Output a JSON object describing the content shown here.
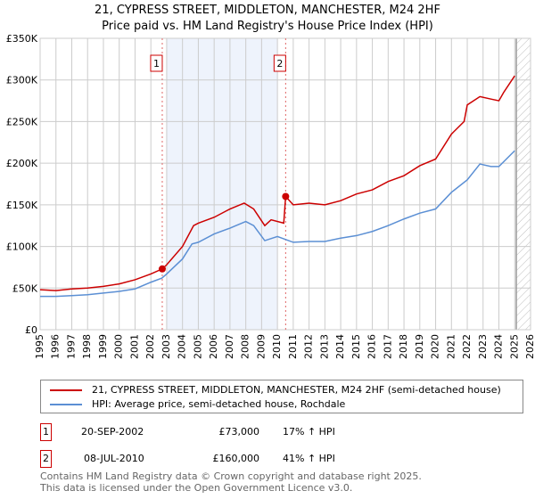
{
  "chart_data": {
    "type": "line",
    "title": "21, CYPRESS STREET, MIDDLETON, MANCHESTER, M24 2HF",
    "subtitle": "Price paid vs. HM Land Registry's House Price Index (HPI)",
    "xlim": [
      1995,
      2026
    ],
    "ylim": [
      0,
      350000
    ],
    "x_ticks": [
      "1995",
      "1996",
      "1997",
      "1998",
      "1999",
      "2000",
      "2001",
      "2002",
      "2003",
      "2004",
      "2005",
      "2006",
      "2007",
      "2008",
      "2009",
      "2010",
      "2011",
      "2012",
      "2013",
      "2014",
      "2015",
      "2016",
      "2017",
      "2018",
      "2019",
      "2020",
      "2021",
      "2022",
      "2023",
      "2024",
      "2025",
      "2026"
    ],
    "y_ticks": [
      {
        "v": 0,
        "l": "£0"
      },
      {
        "v": 50000,
        "l": "£50K"
      },
      {
        "v": 100000,
        "l": "£100K"
      },
      {
        "v": 150000,
        "l": "£150K"
      },
      {
        "v": 200000,
        "l": "£200K"
      },
      {
        "v": 250000,
        "l": "£250K"
      },
      {
        "v": 300000,
        "l": "£300K"
      },
      {
        "v": 350000,
        "l": "£350K"
      }
    ],
    "grid": true,
    "shaded_range": [
      2003.0,
      2010.0
    ],
    "future_hatch_from": 2025.1,
    "series": [
      {
        "name": "21, CYPRESS STREET, MIDDLETON, MANCHESTER, M24 2HF (semi-detached house)",
        "color": "#cc0000",
        "x": [
          1995,
          1996,
          1997,
          1998,
          1999,
          2000,
          2001,
          2002,
          2002.72,
          2003,
          2004,
          2004.7,
          2005,
          2006,
          2007,
          2007.9,
          2008.5,
          2009.2,
          2009.6,
          2010.4,
          2010.52,
          2011,
          2012,
          2013,
          2014,
          2015,
          2016,
          2017,
          2018,
          2019,
          2020,
          2021,
          2021.8,
          2022,
          2022.8,
          2023.5,
          2024,
          2024.3,
          2025
        ],
        "y": [
          48000,
          47000,
          49000,
          50000,
          52000,
          55000,
          60000,
          67000,
          73000,
          78000,
          100000,
          125000,
          128000,
          135000,
          145000,
          152000,
          145000,
          125000,
          132000,
          128000,
          160000,
          150000,
          152000,
          150000,
          155000,
          163000,
          168000,
          178000,
          185000,
          197000,
          205000,
          235000,
          250000,
          270000,
          280000,
          277000,
          275000,
          285000,
          305000
        ]
      },
      {
        "name": "HPI: Average price, semi-detached house, Rochdale",
        "color": "#5b8fd4",
        "x": [
          1995,
          1996,
          1997,
          1998,
          1999,
          2000,
          2001,
          2002,
          2002.7,
          2003,
          2004,
          2004.6,
          2005,
          2006,
          2007,
          2008,
          2008.5,
          2009.2,
          2010,
          2011,
          2012,
          2013,
          2014,
          2015,
          2016,
          2017,
          2018,
          2019,
          2020,
          2021,
          2022,
          2022.8,
          2023.5,
          2024,
          2025
        ],
        "y": [
          40000,
          40000,
          41000,
          42000,
          44000,
          46000,
          49000,
          57000,
          62000,
          67000,
          85000,
          103000,
          105000,
          115000,
          122000,
          130000,
          125000,
          107000,
          112000,
          105000,
          106000,
          106000,
          110000,
          113000,
          118000,
          125000,
          133000,
          140000,
          145000,
          165000,
          180000,
          199000,
          196000,
          196000,
          215000
        ]
      }
    ],
    "sales": [
      {
        "label": "1",
        "x": 2002.72,
        "y": 73000,
        "date": "20-SEP-2002",
        "price": "£73,000",
        "hpi": "17% ↑ HPI"
      },
      {
        "label": "2",
        "x": 2010.52,
        "y": 160000,
        "date": "08-JUL-2010",
        "price": "£160,000",
        "hpi": "41% ↑ HPI"
      }
    ]
  },
  "footer": {
    "line1": "Contains HM Land Registry data © Crown copyright and database right 2025.",
    "line2": "This data is licensed under the Open Government Licence v3.0."
  }
}
